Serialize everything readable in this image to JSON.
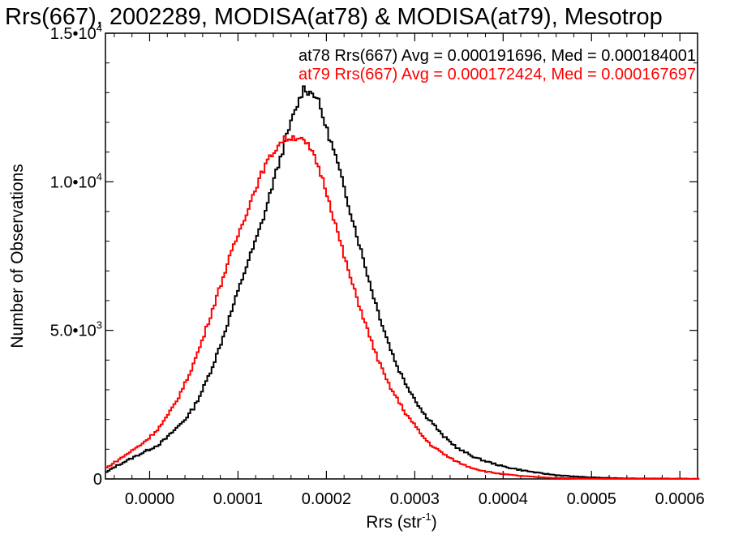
{
  "chart_data": {
    "type": "line",
    "title": "Rrs(667), 2002289, MODISA(at78) & MODISA(at79), Mesotrop",
    "xlabel_main": "Rrs (str",
    "xlabel_sup": "-1",
    "xlabel_close": ")",
    "ylabel": "Number of Observations",
    "xlim": [
      -5e-05,
      0.00062
    ],
    "ylim": [
      0,
      15000
    ],
    "xticks": [
      {
        "value": 0.0,
        "label": "0.0000"
      },
      {
        "value": 0.0001,
        "label": "0.0001"
      },
      {
        "value": 0.0002,
        "label": "0.0002"
      },
      {
        "value": 0.0003,
        "label": "0.0003"
      },
      {
        "value": 0.0004,
        "label": "0.0004"
      },
      {
        "value": 0.0005,
        "label": "0.0005"
      },
      {
        "value": 0.0006,
        "label": "0.0006"
      }
    ],
    "yticks": [
      {
        "value": 0,
        "mant": "0",
        "exp": ""
      },
      {
        "value": 5000,
        "mant": "5.0•10",
        "exp": "3"
      },
      {
        "value": 10000,
        "mant": "1.0•10",
        "exp": "4"
      },
      {
        "value": 15000,
        "mant": "1.5•10",
        "exp": "4"
      }
    ],
    "series": [
      {
        "name": "at78",
        "color": "#000000",
        "legend": "at78 Rrs(667) Avg = 0.000191696, Med = 0.000184001",
        "x": [
          -5e-05,
          -4e-05,
          -3e-05,
          -2e-05,
          -1e-05,
          0.0,
          1e-05,
          2e-05,
          3e-05,
          4e-05,
          5e-05,
          6e-05,
          7e-05,
          8e-05,
          9e-05,
          0.0001,
          0.00011,
          0.00012,
          0.00013,
          0.00014,
          0.00015,
          0.00016,
          0.00017,
          0.000175,
          0.00018,
          0.000185,
          0.00019,
          0.0002,
          0.00021,
          0.00022,
          0.00023,
          0.00024,
          0.00025,
          0.00026,
          0.00027,
          0.00028,
          0.00029,
          0.0003,
          0.00031,
          0.00032,
          0.00033,
          0.00034,
          0.00035,
          0.00036,
          0.00037,
          0.00038,
          0.0004,
          0.00042,
          0.00044,
          0.00046,
          0.00048,
          0.0005,
          0.00052,
          0.00055,
          0.00058,
          0.00062
        ],
        "y": [
          200,
          400,
          550,
          700,
          850,
          1000,
          1150,
          1400,
          1700,
          2000,
          2400,
          3000,
          3700,
          4500,
          5400,
          6300,
          7200,
          8000,
          8900,
          10000,
          11000,
          12000,
          12800,
          13200,
          13000,
          13000,
          12800,
          11800,
          10900,
          9800,
          8700,
          7600,
          6500,
          5500,
          4600,
          3800,
          3200,
          2700,
          2200,
          1900,
          1500,
          1250,
          1000,
          850,
          700,
          600,
          420,
          300,
          200,
          130,
          80,
          50,
          30,
          15,
          10,
          5
        ]
      },
      {
        "name": "at79",
        "color": "#ff0000",
        "legend": "at79 Rrs(667) Avg = 0.000172424, Med = 0.000167697",
        "x": [
          -5e-05,
          -4e-05,
          -3e-05,
          -2e-05,
          -1e-05,
          0.0,
          1e-05,
          2e-05,
          3e-05,
          4e-05,
          5e-05,
          6e-05,
          7e-05,
          8e-05,
          9e-05,
          0.0001,
          0.00011,
          0.00012,
          0.00013,
          0.00014,
          0.00015,
          0.00016,
          0.00017,
          0.000175,
          0.00018,
          0.00019,
          0.0002,
          0.00021,
          0.00022,
          0.00023,
          0.00024,
          0.00025,
          0.00026,
          0.00027,
          0.00028,
          0.00029,
          0.0003,
          0.00031,
          0.00032,
          0.00033,
          0.00034,
          0.00035,
          0.00036,
          0.00037,
          0.00038,
          0.0004,
          0.00042,
          0.00044,
          0.00046,
          0.00048,
          0.0005,
          0.00052,
          0.00055,
          0.00058,
          0.00062
        ],
        "y": [
          350,
          550,
          750,
          950,
          1150,
          1400,
          1700,
          2100,
          2600,
          3200,
          3900,
          4700,
          5600,
          6500,
          7400,
          8200,
          9000,
          9800,
          10500,
          11000,
          11400,
          11500,
          11500,
          11300,
          11200,
          10600,
          9700,
          8600,
          7500,
          6500,
          5600,
          4700,
          3900,
          3200,
          2700,
          2200,
          1800,
          1400,
          1100,
          900,
          700,
          550,
          420,
          330,
          250,
          160,
          100,
          60,
          35,
          20,
          10,
          5,
          3,
          1,
          0
        ]
      }
    ]
  }
}
